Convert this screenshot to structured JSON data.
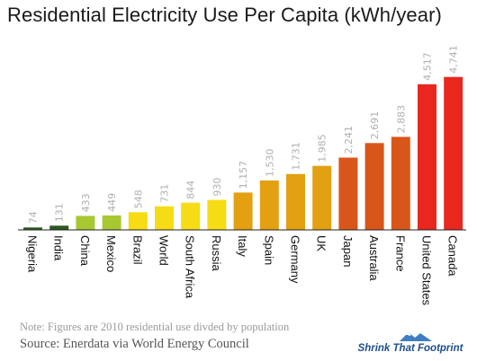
{
  "chart_data": {
    "type": "bar",
    "title": "Residential Electricity Use Per Capita (kWh/year)",
    "xlabel": "",
    "ylabel": "",
    "ylim": [
      0,
      4900
    ],
    "grid": false,
    "legend": "none",
    "categories": [
      "Nigeria",
      "India",
      "China",
      "Mexico",
      "Brazil",
      "World",
      "South Africa",
      "Russia",
      "Italy",
      "Spain",
      "Germany",
      "UK",
      "Japan",
      "Australia",
      "France",
      "United States",
      "Canada"
    ],
    "values": [
      74,
      131,
      433,
      449,
      548,
      731,
      844,
      930,
      1157,
      1530,
      1731,
      1985,
      2241,
      2691,
      2883,
      4517,
      4741
    ],
    "data_labels": [
      "74",
      "131",
      "433",
      "449",
      "548",
      "731",
      "844",
      "930",
      "1,157",
      "1,530",
      "1,731",
      "1,985",
      "2,241",
      "2,691",
      "2,883",
      "4,517",
      "4,741"
    ],
    "bar_colors": [
      "#2a5a1e",
      "#2a5a1e",
      "#a8c832",
      "#a8c832",
      "#f5dc14",
      "#f5dc14",
      "#f5dc14",
      "#f5dc14",
      "#e3a012",
      "#e3a012",
      "#e3a012",
      "#e3a012",
      "#d9561a",
      "#d9561a",
      "#d9561a",
      "#e8281e",
      "#e8281e"
    ],
    "note": "Note: Figures are 2010 residential use divded by population",
    "source": "Source:  Enerdata via World Energy Council"
  },
  "logo": {
    "text": "Shrink That Footprint",
    "colors": {
      "text": "#1e4f8c",
      "mountain": "#3f7fc1",
      "snow": "#ffffff"
    }
  }
}
